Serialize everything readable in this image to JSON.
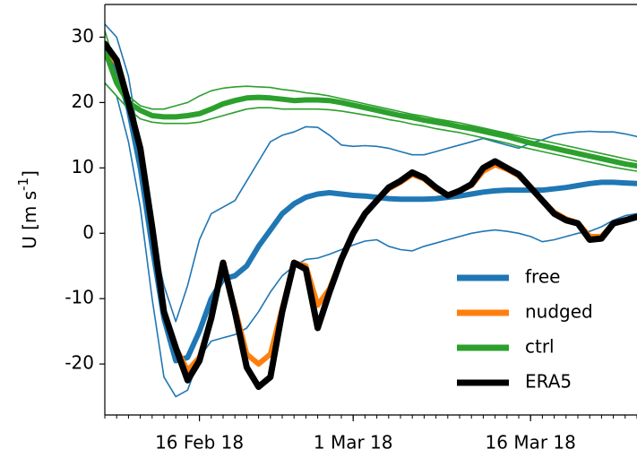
{
  "chart_data": {
    "type": "line",
    "ylabel": [
      "U [m s",
      "-1",
      "]"
    ],
    "x": [
      "2018-02-08",
      "2018-02-09",
      "2018-02-10",
      "2018-02-11",
      "2018-02-12",
      "2018-02-13",
      "2018-02-14",
      "2018-02-15",
      "2018-02-16",
      "2018-02-17",
      "2018-02-18",
      "2018-02-19",
      "2018-02-20",
      "2018-02-21",
      "2018-02-22",
      "2018-02-23",
      "2018-02-24",
      "2018-02-25",
      "2018-02-26",
      "2018-02-27",
      "2018-02-28",
      "2018-03-01",
      "2018-03-02",
      "2018-03-03",
      "2018-03-04",
      "2018-03-05",
      "2018-03-06",
      "2018-03-07",
      "2018-03-08",
      "2018-03-09",
      "2018-03-10",
      "2018-03-11",
      "2018-03-12",
      "2018-03-13",
      "2018-03-14",
      "2018-03-15",
      "2018-03-16",
      "2018-03-17",
      "2018-03-18",
      "2018-03-19",
      "2018-03-20",
      "2018-03-21",
      "2018-03-22",
      "2018-03-23",
      "2018-03-24",
      "2018-03-25"
    ],
    "xlim": [
      "2018-02-08",
      "2018-03-25"
    ],
    "xticks": [
      {
        "value": "2018-02-16",
        "label": "16 Feb 18"
      },
      {
        "value": "2018-03-01",
        "label": "1 Mar 18"
      },
      {
        "value": "2018-03-16",
        "label": "16 Mar 18"
      }
    ],
    "ylim": [
      -27.8,
      35
    ],
    "yticks": [
      -20,
      -10,
      0,
      10,
      20,
      30
    ],
    "legend": "lower right",
    "series": [
      {
        "name": "free",
        "color": "#1f77b4",
        "values": [
          28,
          25,
          19,
          10,
          -2,
          -13,
          -19.5,
          -19,
          -15,
          -10,
          -7,
          -6.5,
          -5,
          -2,
          0.5,
          3,
          4.5,
          5.5,
          6,
          6.2,
          6,
          5.8,
          5.7,
          5.5,
          5.3,
          5.2,
          5.2,
          5.2,
          5.3,
          5.5,
          5.7,
          6,
          6.3,
          6.5,
          6.6,
          6.6,
          6.6,
          6.6,
          6.8,
          7,
          7.3,
          7.6,
          7.8,
          7.8,
          7.7,
          7.6
        ],
        "upper": [
          32,
          30,
          24,
          13,
          0,
          -8,
          -13.5,
          -8,
          -1,
          3,
          4,
          5,
          8,
          11,
          14,
          15,
          15.5,
          16.3,
          16.2,
          15,
          13.5,
          13.3,
          13.4,
          13.3,
          13,
          12.5,
          12,
          12,
          12.5,
          13,
          13.5,
          14,
          14.5,
          14,
          13.5,
          13,
          13.8,
          14.3,
          15,
          15.3,
          15.5,
          15.6,
          15.5,
          15.5,
          15.2,
          14.8
        ],
        "lower": [
          23,
          21,
          14,
          4,
          -10,
          -22,
          -25,
          -24,
          -19,
          -16.5,
          -16,
          -15.5,
          -14.5,
          -12,
          -9,
          -6.5,
          -5,
          -4,
          -3.8,
          -3.2,
          -2.5,
          -1.8,
          -1.2,
          -1,
          -2,
          -2.5,
          -2.7,
          -2,
          -1.5,
          -1,
          -0.5,
          0,
          0.3,
          0.5,
          0.3,
          0,
          -0.5,
          -1.3,
          -1,
          -0.5,
          0,
          0.3,
          1,
          2,
          2.7,
          3
        ]
      },
      {
        "name": "nudged",
        "color": "#ff7f0e",
        "values": [
          28.5,
          26,
          20,
          13,
          1,
          -12,
          -17.5,
          -21,
          -19,
          -13,
          -4.8,
          -11.5,
          -18.5,
          -20,
          -18.5,
          -11.5,
          -4.5,
          -5,
          -11,
          -8.5,
          -4,
          0,
          3,
          5,
          6.8,
          7.8,
          9,
          8.3,
          6.8,
          5.8,
          6.5,
          7.3,
          9.5,
          10.5,
          9.8,
          8.8,
          7,
          5,
          3.2,
          2.2,
          1.6,
          -0.5,
          -0.5,
          1.5,
          2,
          2.5
        ]
      },
      {
        "name": "ctrl",
        "color": "#2ca02c",
        "values": [
          28,
          23,
          20,
          18.8,
          18,
          17.8,
          17.8,
          18,
          18.3,
          19,
          19.8,
          20.3,
          20.7,
          20.8,
          20.7,
          20.5,
          20.3,
          20.4,
          20.4,
          20.3,
          20,
          19.6,
          19.2,
          18.8,
          18.4,
          18,
          17.7,
          17.3,
          17,
          16.7,
          16.3,
          16,
          15.6,
          15.2,
          14.8,
          14.3,
          13.8,
          13.4,
          13,
          12.6,
          12.2,
          11.8,
          11.4,
          11,
          10.6,
          10.3
        ],
        "upper": [
          31,
          25,
          21,
          19.5,
          19,
          19,
          19.5,
          20,
          21,
          21.8,
          22.2,
          22.4,
          22.5,
          22.4,
          22.3,
          22,
          21.8,
          21.5,
          21.3,
          21,
          20.6,
          20.2,
          19.8,
          19.4,
          19,
          18.6,
          18.2,
          17.9,
          17.5,
          17.2,
          16.9,
          16.5,
          16.1,
          15.7,
          15.3,
          14.9,
          14.5,
          14.2,
          13.8,
          13.4,
          13,
          12.6,
          12.2,
          11.8,
          11.4,
          11
        ],
        "lower": [
          23,
          21,
          19,
          17.5,
          17,
          16.8,
          16.8,
          16.8,
          17,
          17.5,
          18,
          18.5,
          19,
          19.2,
          19.2,
          19,
          19,
          19,
          19,
          18.9,
          18.7,
          18.4,
          18.1,
          17.8,
          17.4,
          17.1,
          16.7,
          16.4,
          16,
          15.7,
          15.4,
          15,
          14.6,
          14.2,
          13.8,
          13.3,
          12.9,
          12.5,
          12.1,
          11.7,
          11.3,
          10.9,
          10.5,
          10.1,
          9.8,
          9.5
        ]
      },
      {
        "name": "ERA5",
        "color": "#000000",
        "values": [
          29,
          26.5,
          20,
          13,
          1,
          -12,
          -17.5,
          -22.5,
          -19.5,
          -13,
          -4.5,
          -12,
          -20.5,
          -23.5,
          -22,
          -12,
          -4.5,
          -5.5,
          -14.5,
          -9,
          -4,
          0,
          3,
          5,
          7,
          8,
          9.3,
          8.5,
          7,
          5.8,
          6.5,
          7.5,
          10,
          11,
          10,
          9,
          7,
          5,
          3,
          2,
          1.5,
          -1,
          -0.8,
          1.5,
          2,
          2.5
        ]
      }
    ]
  }
}
